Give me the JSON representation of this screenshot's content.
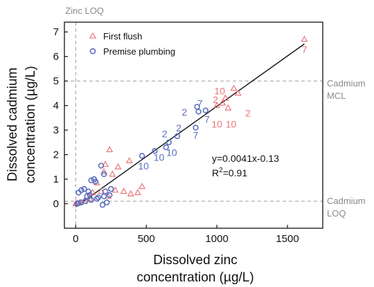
{
  "chart_data": {
    "type": "scatter",
    "xlabel_lines": [
      "Dissolved zinc",
      "concentration (µg/L)"
    ],
    "ylabel_lines": [
      "Dissolved cadmium",
      "concentration (µg/L)"
    ],
    "xlim": [
      -80,
      1750
    ],
    "ylim": [
      -1,
      7.4
    ],
    "xticks": [
      0,
      500,
      1000,
      1500
    ],
    "yticks": [
      0,
      1,
      2,
      3,
      4,
      5,
      6,
      7
    ],
    "legend": {
      "placement": "top-left"
    },
    "colors": {
      "first_flush": "#e8767a",
      "premise_plumbing": "#5a6fc0"
    },
    "series": [
      {
        "name": "First flush",
        "marker": "triangle",
        "points": [
          [
            1620,
            6.7
          ],
          [
            1120,
            4.7
          ],
          [
            1060,
            4.3
          ],
          [
            1080,
            3.9
          ],
          [
            1150,
            4.5
          ],
          [
            1000,
            4.0
          ],
          [
            1040,
            4.1
          ],
          [
            240,
            2.2
          ],
          [
            210,
            1.6
          ],
          [
            380,
            1.75
          ],
          [
            300,
            1.5
          ],
          [
            260,
            1.2
          ],
          [
            200,
            1.3
          ],
          [
            470,
            0.7
          ],
          [
            440,
            0.45
          ],
          [
            390,
            0.4
          ],
          [
            340,
            0.5
          ],
          [
            150,
            0.85
          ],
          [
            120,
            0.45
          ],
          [
            180,
            0.5
          ],
          [
            230,
            0.3
          ],
          [
            100,
            0.2
          ],
          [
            60,
            0.1
          ],
          [
            30,
            0.05
          ],
          [
            0,
            0.0
          ],
          [
            10,
            0.02
          ],
          [
            280,
            0.55
          ]
        ]
      },
      {
        "name": "Premise plumbing",
        "marker": "circle",
        "points": [
          [
            920,
            3.8
          ],
          [
            870,
            3.75
          ],
          [
            860,
            3.95
          ],
          [
            850,
            3.1
          ],
          [
            720,
            2.75
          ],
          [
            660,
            2.5
          ],
          [
            640,
            2.3
          ],
          [
            560,
            2.15
          ],
          [
            470,
            1.95
          ],
          [
            180,
            1.55
          ],
          [
            200,
            1.2
          ],
          [
            130,
            1.0
          ],
          [
            110,
            0.95
          ],
          [
            140,
            0.9
          ],
          [
            60,
            0.6
          ],
          [
            40,
            0.55
          ],
          [
            90,
            0.5
          ],
          [
            20,
            0.45
          ],
          [
            160,
            0.25
          ],
          [
            200,
            0.3
          ],
          [
            240,
            0.35
          ],
          [
            210,
            0.5
          ],
          [
            250,
            0.6
          ],
          [
            110,
            0.15
          ],
          [
            70,
            0.1
          ],
          [
            40,
            0.05
          ],
          [
            20,
            0.02
          ],
          [
            10,
            0.0
          ],
          [
            150,
            0.2
          ],
          [
            220,
            0.05
          ],
          [
            190,
            -0.05
          ],
          [
            80,
            0.3
          ],
          [
            100,
            0.35
          ]
        ]
      }
    ],
    "fit_line": {
      "slope": 0.0041,
      "intercept": -0.13,
      "x_range": [
        0,
        1620
      ]
    },
    "fit_text": {
      "equation": "y=0.0041x-0.13",
      "r2_base": "R",
      "r2_sup": "2",
      "r2_value": "=0.91"
    },
    "reference_lines": [
      {
        "axis": "x",
        "value": 0,
        "label": "Zinc LOQ",
        "name": "zinc-loq"
      },
      {
        "axis": "y",
        "value": 5,
        "label_lines": [
          "Cadmium",
          "MCL"
        ],
        "name": "cadmium-mcl"
      },
      {
        "axis": "y",
        "value": 0.1,
        "label_lines": [
          "Cadmium",
          "LOQ"
        ],
        "name": "cadmium-loq"
      }
    ],
    "annotations": [
      {
        "text": "7",
        "x": 1620,
        "y": 6.15,
        "series": "First flush"
      },
      {
        "text": "10",
        "x": 1020,
        "y": 4.45,
        "series": "First flush"
      },
      {
        "text": "2",
        "x": 990,
        "y": 4.1,
        "series": "First flush"
      },
      {
        "text": "2",
        "x": 1220,
        "y": 3.55,
        "series": "First flush"
      },
      {
        "text": "10",
        "x": 1000,
        "y": 3.1,
        "series": "First flush"
      },
      {
        "text": "10",
        "x": 1100,
        "y": 3.1,
        "series": "First flush"
      },
      {
        "text": "2",
        "x": 770,
        "y": 3.6,
        "series": "Premise plumbing"
      },
      {
        "text": "7",
        "x": 880,
        "y": 3.95,
        "series": "Premise plumbing"
      },
      {
        "text": "7",
        "x": 930,
        "y": 3.3,
        "series": "Premise plumbing"
      },
      {
        "text": "2",
        "x": 730,
        "y": 2.95,
        "series": "Premise plumbing"
      },
      {
        "text": "7",
        "x": 850,
        "y": 2.65,
        "series": "Premise plumbing"
      },
      {
        "text": "2",
        "x": 630,
        "y": 2.7,
        "series": "Premise plumbing"
      },
      {
        "text": "10",
        "x": 680,
        "y": 1.95,
        "series": "Premise plumbing"
      },
      {
        "text": "10",
        "x": 590,
        "y": 1.75,
        "series": "Premise plumbing"
      },
      {
        "text": "10",
        "x": 480,
        "y": 1.4,
        "series": "Premise plumbing"
      }
    ]
  }
}
